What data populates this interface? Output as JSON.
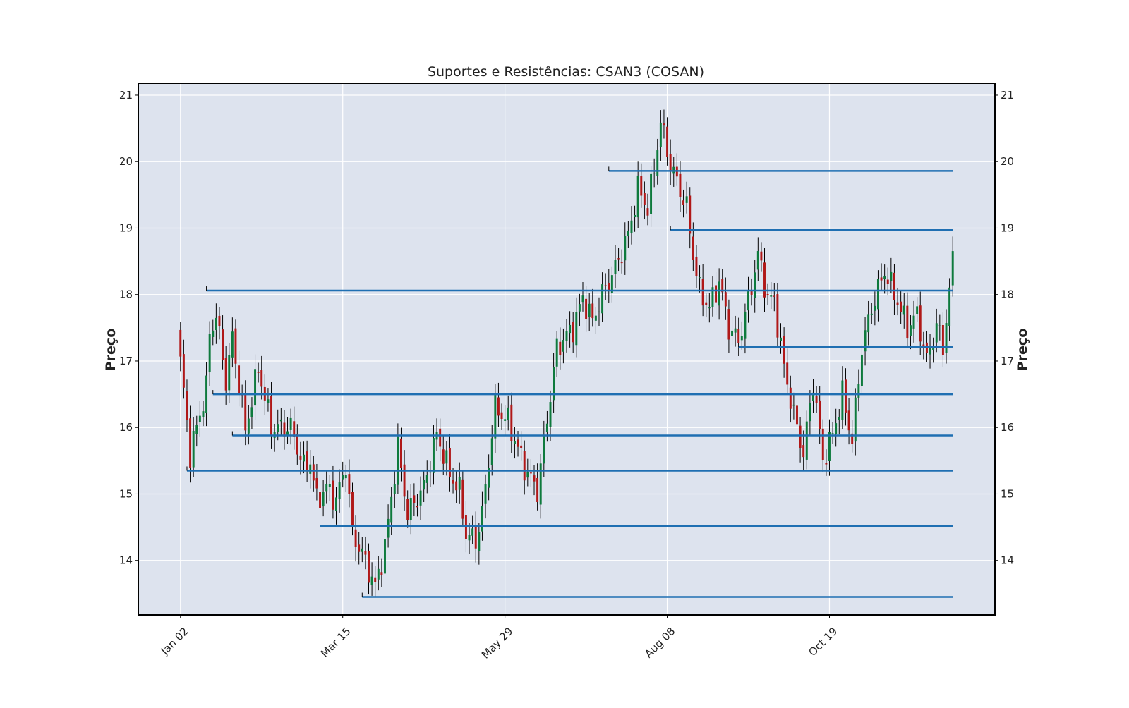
{
  "chart_data": {
    "type": "candlestick",
    "title": "Suportes e Resistências: CSAN3 (COSAN)",
    "ylabel": "Preço",
    "ylabel_right": "Preço",
    "xlabel": "",
    "x_tick_labels": [
      "Jan 02",
      "Mar 15",
      "May 29",
      "Aug 08",
      "Oct 19"
    ],
    "x_tick_index": [
      0,
      50,
      100,
      150,
      200
    ],
    "x_range_index": [
      -13,
      251
    ],
    "y_ticks": [
      14,
      15,
      16,
      17,
      18,
      19,
      20,
      21
    ],
    "ylim": [
      13.18,
      21.18
    ],
    "grid": true,
    "background": "#dde3ee",
    "colors": {
      "up": "#0e7a3d",
      "down": "#b01818",
      "wick": "#000000",
      "level": "#1f6fb2"
    },
    "price_path_anchors": [
      [
        0,
        17.0
      ],
      [
        3,
        15.6
      ],
      [
        8,
        16.6
      ],
      [
        9,
        17.4
      ],
      [
        11,
        17.7
      ],
      [
        14,
        16.7
      ],
      [
        16,
        17.35
      ],
      [
        20,
        15.95
      ],
      [
        24,
        16.9
      ],
      [
        28,
        16.0
      ],
      [
        34,
        16.0
      ],
      [
        40,
        15.5
      ],
      [
        38,
        15.4
      ],
      [
        42,
        14.9
      ],
      [
        45,
        15.1
      ],
      [
        48,
        14.9
      ],
      [
        51,
        15.45
      ],
      [
        53,
        14.4
      ],
      [
        56,
        14.1
      ],
      [
        60,
        13.6
      ],
      [
        63,
        14.2
      ],
      [
        67,
        15.7
      ],
      [
        70,
        14.7
      ],
      [
        75,
        15.1
      ],
      [
        79,
        15.9
      ],
      [
        83,
        15.3
      ],
      [
        86,
        15.05
      ],
      [
        88,
        14.4
      ],
      [
        91,
        14.3
      ],
      [
        93,
        14.7
      ],
      [
        97,
        16.3
      ],
      [
        101,
        16.1
      ],
      [
        106,
        15.4
      ],
      [
        110,
        15.05
      ],
      [
        116,
        17.2
      ],
      [
        121,
        17.5
      ],
      [
        124,
        17.95
      ],
      [
        127,
        17.6
      ],
      [
        130,
        18.0
      ],
      [
        134,
        18.4
      ],
      [
        138,
        18.9
      ],
      [
        141,
        19.6
      ],
      [
        144,
        19.3
      ],
      [
        146,
        19.9
      ],
      [
        148,
        20.6
      ],
      [
        151,
        19.95
      ],
      [
        153,
        19.7
      ],
      [
        156,
        19.3
      ],
      [
        158,
        18.6
      ],
      [
        160,
        18.05
      ],
      [
        163,
        17.8
      ],
      [
        166,
        18.2
      ],
      [
        169,
        17.5
      ],
      [
        172,
        17.3
      ],
      [
        175,
        17.9
      ],
      [
        178,
        18.6
      ],
      [
        181,
        17.95
      ],
      [
        183,
        17.9
      ],
      [
        186,
        16.9
      ],
      [
        189,
        16.2
      ],
      [
        192,
        15.6
      ],
      [
        195,
        16.7
      ],
      [
        198,
        15.5
      ],
      [
        201,
        15.9
      ],
      [
        204,
        16.5
      ],
      [
        207,
        15.8
      ],
      [
        210,
        17.2
      ],
      [
        213,
        17.8
      ],
      [
        217,
        18.35
      ],
      [
        221,
        17.9
      ],
      [
        224,
        17.5
      ],
      [
        227,
        17.7
      ],
      [
        230,
        17.0
      ],
      [
        233,
        17.55
      ],
      [
        235,
        17.2
      ],
      [
        238,
        18.5
      ]
    ],
    "support_resistance_levels": [
      {
        "price": 19.86,
        "start_index": 132
      },
      {
        "price": 18.97,
        "start_index": 151
      },
      {
        "price": 18.06,
        "start_index": 8
      },
      {
        "price": 17.21,
        "start_index": 172
      },
      {
        "price": 16.5,
        "start_index": 10
      },
      {
        "price": 15.88,
        "start_index": 16
      },
      {
        "price": 15.35,
        "start_index": 2
      },
      {
        "price": 14.52,
        "start_index": 43
      },
      {
        "price": 13.45,
        "start_index": 56
      }
    ],
    "level_end_index": 238
  }
}
